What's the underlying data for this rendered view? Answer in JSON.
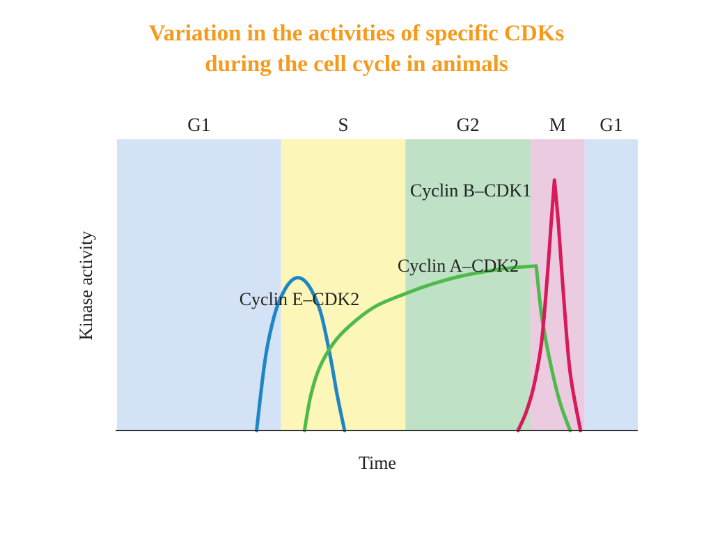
{
  "slide": {
    "title_line1": "Variation in the activities of specific CDKs",
    "title_line2": "during the cell cycle in animals"
  },
  "chart_data": {
    "type": "line",
    "title": "Variation in the activities of specific CDKs during the cell cycle in animals",
    "xlabel": "Time",
    "ylabel": "Kinase activity",
    "xlim": [
      0,
      100
    ],
    "ylim": [
      0,
      100
    ],
    "phases": [
      {
        "label": "G1",
        "start": 0,
        "end": 31.5,
        "color": "#d3e2f5"
      },
      {
        "label": "S",
        "start": 31.5,
        "end": 55.4,
        "color": "#fcf6b9"
      },
      {
        "label": "G2",
        "start": 55.4,
        "end": 79.4,
        "color": "#bfe1c6"
      },
      {
        "label": "M",
        "start": 79.4,
        "end": 89.8,
        "color": "#eacbe0"
      },
      {
        "label": "G1",
        "start": 89.8,
        "end": 100,
        "color": "#d3e2f5"
      }
    ],
    "series": [
      {
        "name": "Cyclin E–CDK2",
        "color": "#1f86c6",
        "x": [
          26.8,
          28.5,
          30.3,
          32.1,
          33.9,
          35.6,
          37.4,
          39.2,
          41.0,
          42.3,
          43.7
        ],
        "y": [
          0,
          25,
          40,
          48,
          52,
          52,
          48,
          40,
          25,
          12,
          0
        ]
      },
      {
        "name": "Cyclin A–CDK2",
        "color": "#4dba49",
        "x": [
          36.0,
          37.2,
          39.0,
          42.0,
          46.0,
          50.0,
          55.4,
          60.0,
          66.0,
          72.0,
          76.5,
          80.5,
          81.5,
          83.0,
          85.0,
          87.0
        ],
        "y": [
          0,
          12,
          22,
          31,
          38,
          43,
          47,
          50,
          53,
          55,
          56,
          56.5,
          40,
          25,
          10,
          0
        ]
      },
      {
        "name": "Cyclin B–CDK1",
        "color": "#d81a5a",
        "x": [
          77.0,
          78.5,
          80.0,
          81.5,
          82.5,
          83.4,
          84.0,
          84.8,
          85.8,
          87.0,
          89.0
        ],
        "y": [
          0,
          6,
          15,
          30,
          50,
          72,
          86,
          70,
          45,
          20,
          0
        ]
      }
    ],
    "grid": false,
    "legend": "inline labels"
  }
}
